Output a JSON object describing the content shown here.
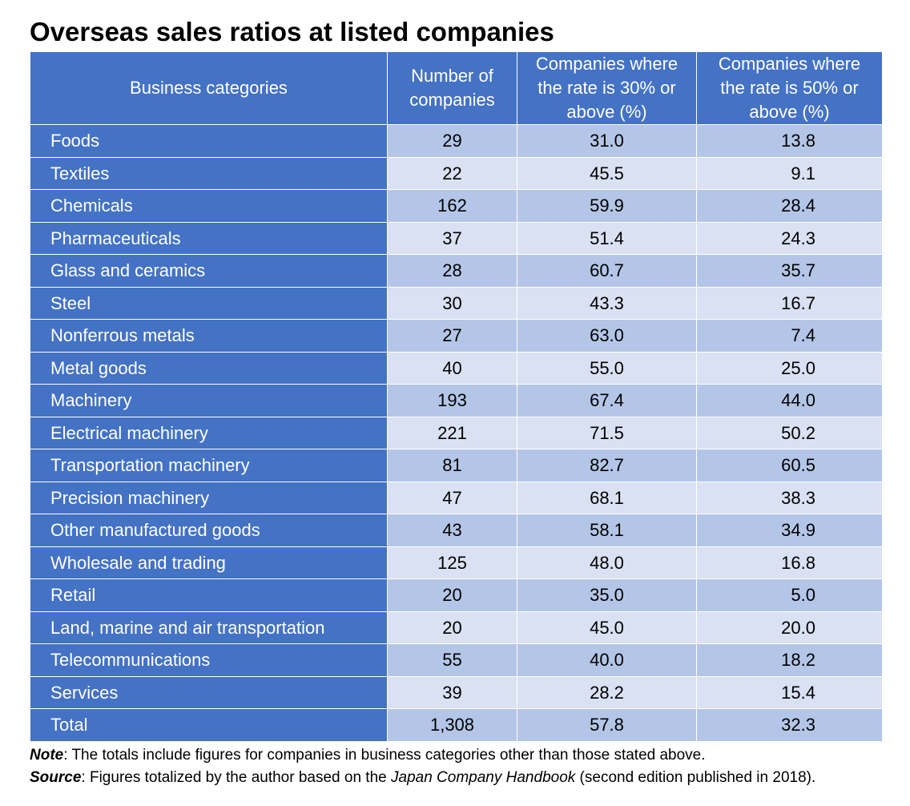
{
  "title": "Overseas sales ratios at listed companies",
  "table": {
    "headers": [
      "Business categories",
      "Number of companies",
      "Companies where the rate is 30% or above (%)",
      "Companies where the rate is 50% or above (%)"
    ],
    "rows": [
      [
        "Foods",
        "29",
        "31.0",
        "13.8"
      ],
      [
        "Textiles",
        "22",
        "45.5",
        "9.1"
      ],
      [
        "Chemicals",
        "162",
        "59.9",
        "28.4"
      ],
      [
        "Pharmaceuticals",
        "37",
        "51.4",
        "24.3"
      ],
      [
        "Glass and ceramics",
        "28",
        "60.7",
        "35.7"
      ],
      [
        "Steel",
        "30",
        "43.3",
        "16.7"
      ],
      [
        "Nonferrous metals",
        "27",
        "63.0",
        "7.4"
      ],
      [
        "Metal goods",
        "40",
        "55.0",
        "25.0"
      ],
      [
        "Machinery",
        "193",
        "67.4",
        "44.0"
      ],
      [
        "Electrical machinery",
        "221",
        "71.5",
        "50.2"
      ],
      [
        "Transportation machinery",
        "81",
        "82.7",
        "60.5"
      ],
      [
        "Precision machinery",
        "47",
        "68.1",
        "38.3"
      ],
      [
        "Other manufactured goods",
        "43",
        "58.1",
        "34.9"
      ],
      [
        "Wholesale and trading",
        "125",
        "48.0",
        "16.8"
      ],
      [
        "Retail",
        "20",
        "35.0",
        "5.0"
      ],
      [
        "Land, marine and air transportation",
        "20",
        "45.0",
        "20.0"
      ],
      [
        "Telecommunications",
        "55",
        "40.0",
        "18.2"
      ],
      [
        "Services",
        "39",
        "28.2",
        "15.4"
      ],
      [
        "Total",
        "1,308",
        "57.8",
        "32.3"
      ]
    ]
  },
  "note": {
    "label": "Note",
    "text": ": The totals include figures for companies in business categories other than those stated above."
  },
  "source": {
    "label": "Source",
    "text_before": ": Figures totalized by the author based on the ",
    "publication": "Japan Company Handbook",
    "text_after": " (second edition published in 2018)."
  },
  "colors": {
    "header_and_category_bg": "#4472c4",
    "row_band_dark": "#b4c6e7",
    "row_band_light": "#d9e1f2"
  }
}
